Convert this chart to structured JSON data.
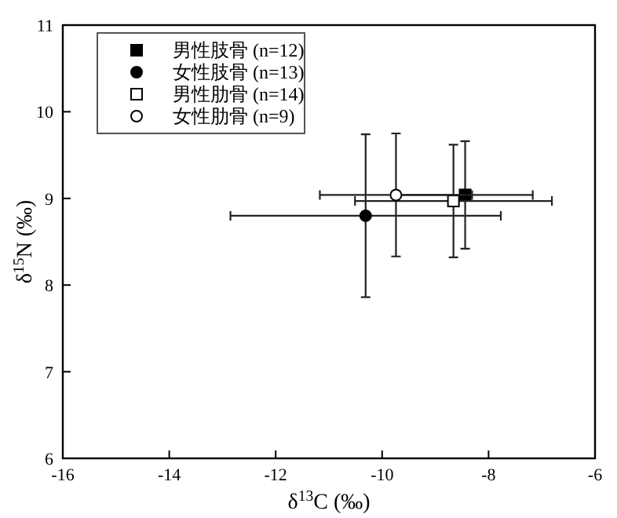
{
  "chart_data": {
    "type": "scatter",
    "xlabel": "δ$^{13}$C (‰)",
    "ylabel": "δ$^{15}$N (‰)",
    "xlim": [
      -16,
      -6
    ],
    "xticks": [
      -16,
      -14,
      -12,
      -10,
      -8,
      -6
    ],
    "ylim": [
      6,
      11
    ],
    "yticks": [
      6,
      7,
      8,
      9,
      10,
      11
    ],
    "grid": false,
    "legend": "top left",
    "series": [
      {
        "name": "男性肢骨 (n=12)",
        "color": "#000000",
        "marker": "square",
        "x": [
          -8.44
        ],
        "values": [
          9.04
        ],
        "xerrors": [
          1.27
        ],
        "errors": [
          0.62
        ]
      },
      {
        "name": "女性肢骨 (n=13)",
        "color": "#000000",
        "marker": "circle",
        "x": [
          -10.31
        ],
        "values": [
          8.8
        ],
        "xerrors": [
          2.54
        ],
        "errors": [
          0.94
        ]
      },
      {
        "name": "男性肋骨 (n=14)",
        "color": "#ffffff",
        "marker": "square",
        "x": [
          -8.66
        ],
        "values": [
          8.97
        ],
        "xerrors": [
          1.85
        ],
        "errors": [
          0.65
        ]
      },
      {
        "name": "女性肋骨 (n=9)",
        "color": "#ffffff",
        "marker": "circle",
        "x": [
          -9.74
        ],
        "values": [
          9.04
        ],
        "xerrors": [
          1.43
        ],
        "errors": [
          0.71
        ]
      }
    ]
  }
}
